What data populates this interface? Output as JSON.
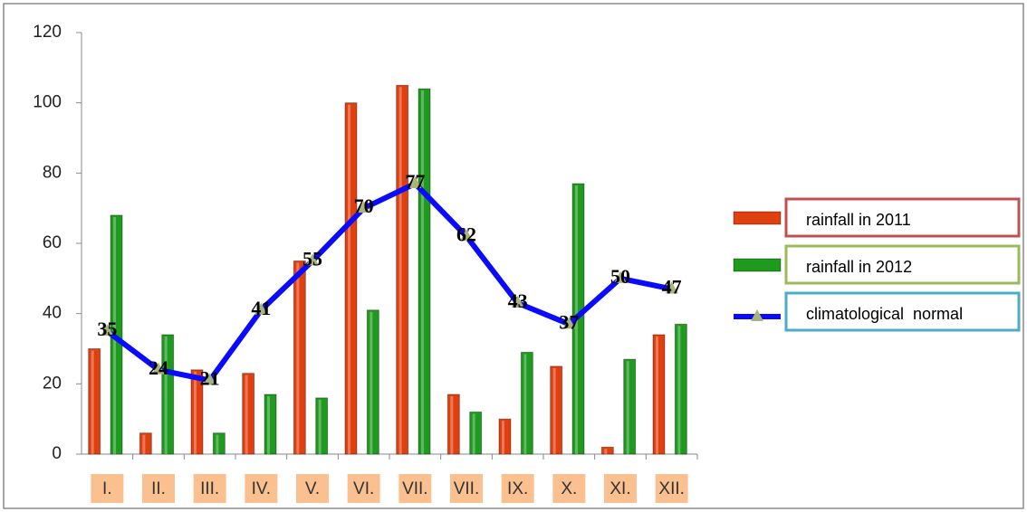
{
  "chart_data": {
    "type": "bar",
    "categories": [
      "I.",
      "II.",
      "III.",
      "IV.",
      "V.",
      "VI.",
      "VII.",
      "VII.",
      "IX.",
      "X.",
      "XI.",
      "XII."
    ],
    "series": [
      {
        "name": "rainfall in 2011",
        "color": "#e0400f",
        "values": [
          30,
          6,
          24,
          23,
          55,
          100,
          105,
          17,
          10,
          25,
          2,
          34
        ]
      },
      {
        "name": "rainfall in 2012",
        "color": "#1e9a1e",
        "values": [
          68,
          34,
          6,
          17,
          16,
          41,
          104,
          12,
          29,
          77,
          27,
          37
        ]
      },
      {
        "name": "climatological  normal",
        "type": "line",
        "color": "#0a0aff",
        "values": [
          35,
          24,
          21,
          41,
          55,
          70,
          77,
          62,
          43,
          37,
          50,
          47
        ]
      }
    ],
    "ylim": [
      0,
      120
    ],
    "yticks": [
      0,
      20,
      40,
      60,
      80,
      100,
      120
    ],
    "grid": false,
    "legend": "right"
  }
}
